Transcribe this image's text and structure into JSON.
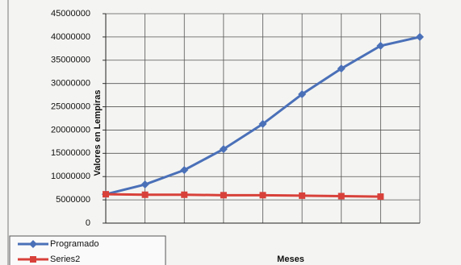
{
  "chart_data": {
    "type": "line",
    "y_label": "Valores en Lempiras",
    "x_label": "Meses",
    "categories": [
      null,
      null,
      null,
      null,
      null,
      null,
      null,
      null,
      null
    ],
    "series": [
      {
        "name": "Programado",
        "color": "#4a70b8",
        "marker": "diamond",
        "values": [
          6200000,
          8300000,
          11400000,
          15900000,
          21300000,
          27700000,
          33200000,
          38100000,
          40000000
        ]
      },
      {
        "name": "Series2",
        "color": "#d8413a",
        "marker": "square",
        "values": [
          6200000,
          6100000,
          6100000,
          6000000,
          6000000,
          5900000,
          5800000,
          5700000,
          null
        ]
      }
    ],
    "ylim": [
      0,
      45000000
    ],
    "yticks": [
      0,
      5000000,
      10000000,
      15000000,
      20000000,
      25000000,
      30000000,
      35000000,
      40000000,
      45000000
    ],
    "grid": true
  }
}
